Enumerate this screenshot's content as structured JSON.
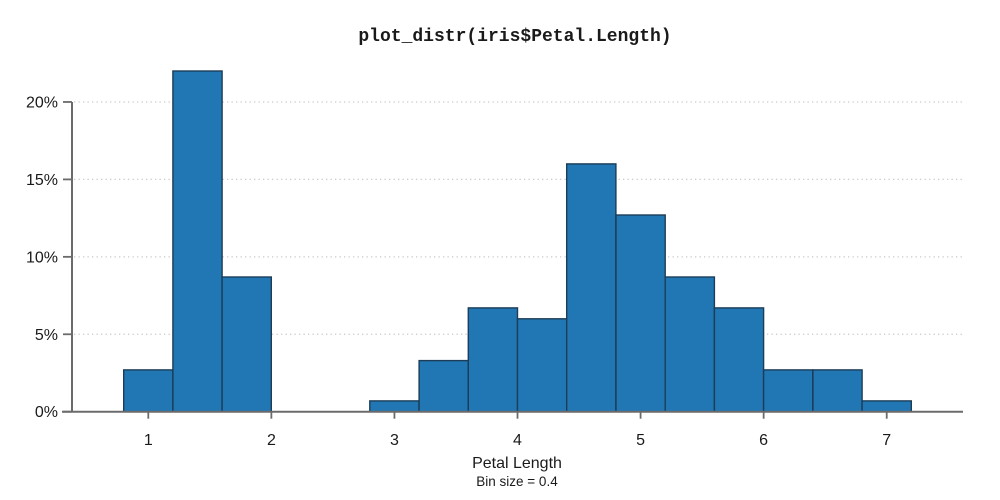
{
  "chart_data": {
    "type": "bar",
    "subtype": "histogram",
    "title": "plot_distr(iris$Petal.Length)",
    "xlabel": "Petal Length",
    "subtitle": "Bin size = 0.4",
    "bin_size": 0.4,
    "bin_edges": [
      0.8,
      1.2,
      1.6,
      2.0,
      2.4,
      2.8,
      3.2,
      3.6,
      4.0,
      4.4,
      4.8,
      5.2,
      5.6,
      6.0,
      6.4,
      6.8,
      7.2
    ],
    "values_percent": [
      2.7,
      22.0,
      8.7,
      0,
      0,
      0.7,
      3.3,
      6.7,
      6.0,
      16.0,
      12.7,
      8.7,
      6.7,
      2.7,
      2.7,
      0.7
    ],
    "x_ticks": {
      "values": [
        1,
        2,
        3,
        4,
        5,
        6,
        7
      ],
      "labels": [
        "1",
        "2",
        "3",
        "4",
        "5",
        "6",
        "7"
      ]
    },
    "y_ticks": {
      "values": [
        0,
        5,
        10,
        15,
        20
      ],
      "labels": [
        "0%",
        "5%",
        "10%",
        "15%",
        "20%"
      ]
    },
    "xlim": [
      0.4,
      7.6
    ],
    "ylim": [
      0,
      22
    ],
    "grid": "horizontal-dotted",
    "legend": "none",
    "colors": {
      "bar_fill": "#2077b4",
      "bar_edge": "#1c3c58",
      "axis": "#6b6b6b",
      "grid_line": "#c9c9c9",
      "text": "#1a1a1a",
      "background": "#ffffff"
    }
  }
}
